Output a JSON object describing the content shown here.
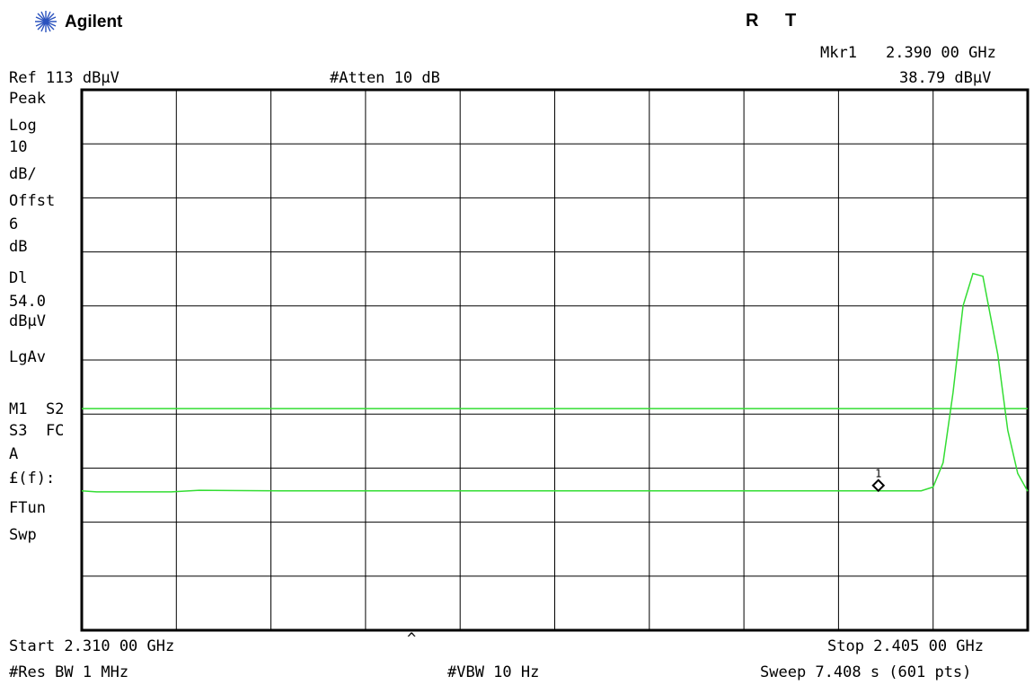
{
  "header": {
    "brand": "Agilent",
    "flag_r": "R",
    "flag_t": "T",
    "marker_label": "Mkr1",
    "marker_freq": "2.390 00 GHz",
    "marker_ampl": "38.79 dBμV",
    "ref_level": "Ref 113 dBμV",
    "atten": "#Atten 10 dB"
  },
  "side_panel": {
    "detector": "Peak",
    "scale": "Log",
    "scale_value": "10",
    "scale_unit": "dB/",
    "offset_label": "Offst",
    "offset_value": "6",
    "offset_unit": "dB",
    "display_line_label": "Dl",
    "display_line_value": "54.0",
    "display_line_unit": "dBμV",
    "averaging": "LgAv",
    "trace_modes_1": "M1  S2",
    "trace_modes_2": "S3  FC",
    "trace_modes_3": "A",
    "function": "£(f):",
    "ftun": "FTun",
    "swp": "Swp",
    "caret": "^"
  },
  "footer": {
    "start": "Start 2.310 00 GHz",
    "stop": "Stop 2.405 00 GHz",
    "rbw": "#Res BW 1 MHz",
    "vbw": "#VBW 10 Hz",
    "sweep": "Sweep 7.408 s (601 pts)"
  },
  "colors": {
    "trace": "#33dd33",
    "grid": "#000000",
    "background": "#ffffff"
  },
  "chart_data": {
    "type": "line",
    "x_unit": "GHz",
    "y_unit": "dBμV",
    "xlim": [
      2.31,
      2.405
    ],
    "ylim": [
      13,
      113
    ],
    "grid": true,
    "display_line": 54.0,
    "marker": {
      "label": "1",
      "x": 2.39,
      "y": 38.79
    },
    "series": [
      {
        "x": [
          2.31,
          2.3115,
          2.319,
          2.3218,
          2.33,
          2.35,
          2.37,
          2.39,
          2.3943,
          2.3955,
          2.3965,
          2.3975,
          2.3985,
          2.3995,
          2.4005,
          2.402,
          2.403,
          2.404,
          2.405
        ],
        "y": [
          38.8,
          38.6,
          38.6,
          38.9,
          38.8,
          38.8,
          38.8,
          38.8,
          38.8,
          39.5,
          44.0,
          57.0,
          73.0,
          79.0,
          78.5,
          64.0,
          50.0,
          42.0,
          38.7
        ]
      }
    ]
  }
}
